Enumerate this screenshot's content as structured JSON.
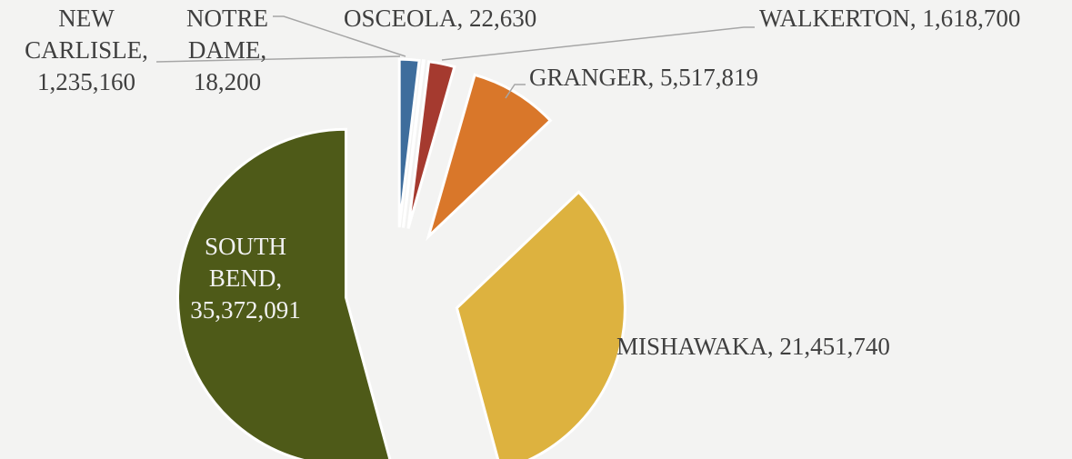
{
  "chart_data": {
    "type": "pie",
    "values": [
      1235160,
      18200,
      22630,
      1618700,
      5517819,
      21451740,
      35372091
    ],
    "value_labels": [
      "NEW CARLISLE, 1,235,160",
      "NOTRE DAME, 18,200",
      "OSCEOLA, 22,630",
      "WALKERTON, 1,618,700",
      "GRANGER, 5,517,819",
      "MISHAWAKA, 21,451,740",
      "SOUTH BEND, 35,372,091"
    ],
    "colors": [
      "#3e6d9c",
      "#8a8a8a",
      "#7d5f9a",
      "#a53a2f",
      "#d9772a",
      "#ddb23f",
      "#4e5a18"
    ]
  }
}
